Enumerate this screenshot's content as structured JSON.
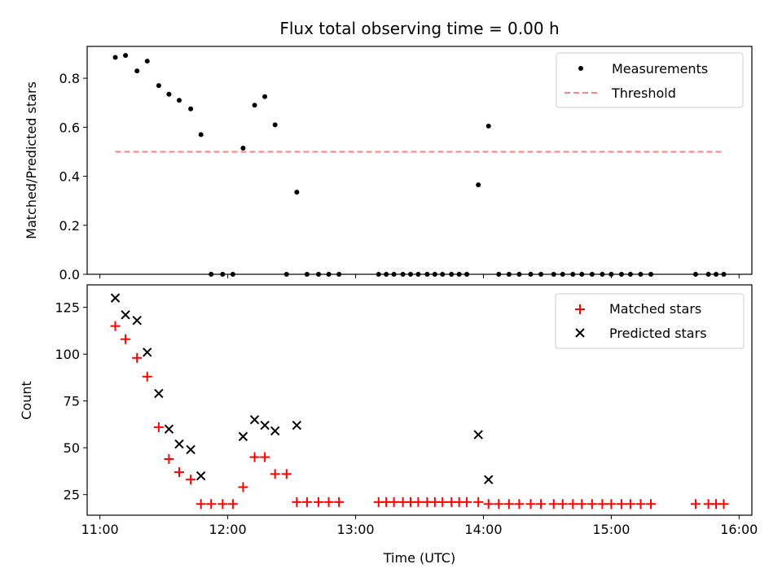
{
  "chart_data": [
    {
      "type": "scatter",
      "title": "Flux total observing time = 0.00 h",
      "xlabel": "",
      "ylabel": "Matched/Predicted stars",
      "xlim_hours": [
        10.9,
        16.1
      ],
      "ylim": [
        0,
        0.93
      ],
      "xticks_hours": [
        11,
        12,
        13,
        14,
        15,
        16
      ],
      "yticks": [
        0.0,
        0.2,
        0.4,
        0.6,
        0.8
      ],
      "ytick_labels": [
        "0.0",
        "0.2",
        "0.4",
        "0.6",
        "0.8"
      ],
      "legend": [
        "Measurements",
        "Threshold"
      ],
      "legend_position": "top-right",
      "series": [
        {
          "name": "Measurements",
          "marker": "dot",
          "color": "#000000",
          "x": [
            11.12,
            11.2,
            11.29,
            11.37,
            11.46,
            11.54,
            11.62,
            11.71,
            11.79,
            11.87,
            11.96,
            12.04,
            12.12,
            12.21,
            12.29,
            12.37,
            12.46,
            12.54,
            12.62,
            12.71,
            12.79,
            12.87,
            13.18,
            13.24,
            13.3,
            13.37,
            13.43,
            13.49,
            13.56,
            13.62,
            13.68,
            13.75,
            13.81,
            13.87,
            13.96,
            14.04,
            14.12,
            14.2,
            14.28,
            14.37,
            14.45,
            14.55,
            14.62,
            14.7,
            14.77,
            14.85,
            14.93,
            15.0,
            15.08,
            15.15,
            15.23,
            15.31,
            15.66,
            15.76,
            15.82,
            15.88
          ],
          "y": [
            0.885,
            0.893,
            0.83,
            0.87,
            0.77,
            0.735,
            0.71,
            0.675,
            0.57,
            0.0,
            0.0,
            0.0,
            0.515,
            0.69,
            0.725,
            0.61,
            0.0,
            0.335,
            0.0,
            0.0,
            0.0,
            0.0,
            0.0,
            0.0,
            0.0,
            0.0,
            0.0,
            0.0,
            0.0,
            0.0,
            0.0,
            0.0,
            0.0,
            0.0,
            0.365,
            0.605,
            0.0,
            0.0,
            0.0,
            0.0,
            0.0,
            0.0,
            0.0,
            0.0,
            0.0,
            0.0,
            0.0,
            0.0,
            0.0,
            0.0,
            0.0,
            0.0,
            0.0,
            0.0,
            0.0,
            0.0
          ]
        },
        {
          "name": "Threshold",
          "style": "dashed-line",
          "color": "#ff8080",
          "x": [
            11.12,
            15.88
          ],
          "y": [
            0.5,
            0.5
          ]
        }
      ]
    },
    {
      "type": "scatter",
      "title": "",
      "xlabel": "Time (UTC)",
      "ylabel": "Count",
      "xlim_hours": [
        10.9,
        16.1
      ],
      "ylim": [
        14,
        137
      ],
      "xticks_hours": [
        11,
        12,
        13,
        14,
        15,
        16
      ],
      "xtick_labels": [
        "11:00",
        "12:00",
        "13:00",
        "14:00",
        "15:00",
        "16:00"
      ],
      "yticks": [
        25,
        50,
        75,
        100,
        125
      ],
      "ytick_labels": [
        "25",
        "50",
        "75",
        "100",
        "125"
      ],
      "legend": [
        "Matched stars",
        "Predicted stars"
      ],
      "legend_position": "top-right",
      "series": [
        {
          "name": "Matched stars",
          "marker": "plus",
          "color": "#ff0000",
          "x": [
            11.12,
            11.2,
            11.29,
            11.37,
            11.46,
            11.54,
            11.62,
            11.71,
            11.79,
            11.87,
            11.96,
            12.04,
            12.12,
            12.21,
            12.29,
            12.37,
            12.46,
            12.54,
            12.62,
            12.71,
            12.79,
            12.87,
            13.18,
            13.24,
            13.3,
            13.37,
            13.43,
            13.49,
            13.56,
            13.62,
            13.68,
            13.75,
            13.81,
            13.87,
            13.96,
            14.04,
            14.12,
            14.2,
            14.28,
            14.37,
            14.45,
            14.55,
            14.62,
            14.7,
            14.77,
            14.85,
            14.93,
            15.0,
            15.08,
            15.15,
            15.23,
            15.31,
            15.66,
            15.76,
            15.82,
            15.88
          ],
          "y": [
            115,
            108,
            98,
            88,
            61,
            44,
            37,
            33,
            20,
            20,
            20,
            20,
            29,
            45,
            45,
            36,
            36,
            21,
            21,
            21,
            21,
            21,
            21,
            21,
            21,
            21,
            21,
            21,
            21,
            21,
            21,
            21,
            21,
            21,
            21,
            20,
            20,
            20,
            20,
            20,
            20,
            20,
            20,
            20,
            20,
            20,
            20,
            20,
            20,
            20,
            20,
            20,
            20,
            20,
            20,
            20
          ]
        },
        {
          "name": "Predicted stars",
          "marker": "x",
          "color": "#000000",
          "x": [
            11.12,
            11.2,
            11.29,
            11.37,
            11.46,
            11.54,
            11.62,
            11.71,
            11.79,
            12.12,
            12.21,
            12.29,
            12.37,
            12.54,
            13.96,
            14.04
          ],
          "y": [
            130,
            121,
            118,
            101,
            79,
            60,
            52,
            49,
            35,
            56,
            65,
            62,
            59,
            62,
            57,
            33
          ]
        }
      ]
    }
  ]
}
